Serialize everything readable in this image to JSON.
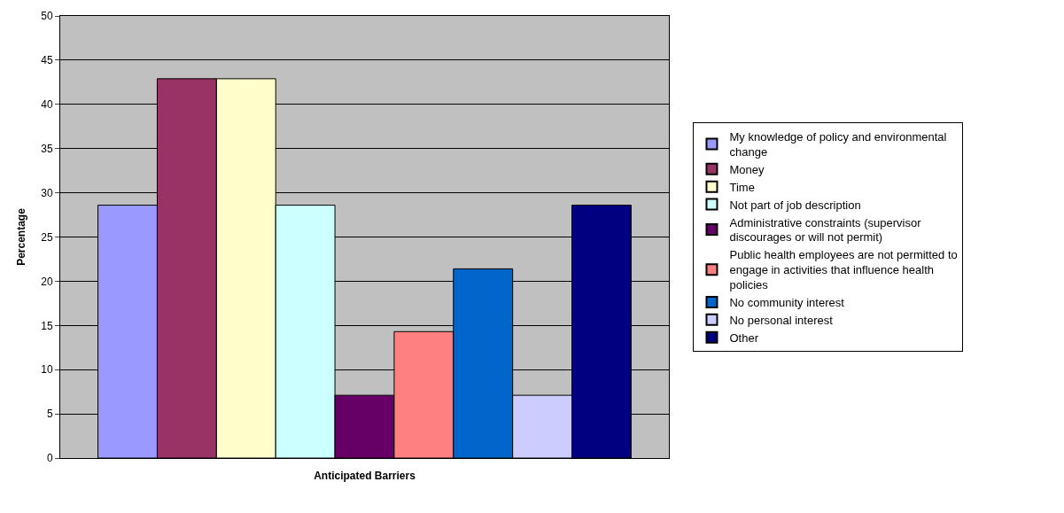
{
  "chart_data": {
    "type": "bar",
    "xlabel": "Anticipated Barriers",
    "ylabel": "Percentage",
    "categories": [
      null
    ],
    "series": [
      {
        "name": "My knowledge of policy and environmental change",
        "color": "#9999ff",
        "values": [
          28.6
        ]
      },
      {
        "name": "Money",
        "color": "#993366",
        "values": [
          42.9
        ]
      },
      {
        "name": "Time",
        "color": "#ffffcc",
        "values": [
          42.9
        ]
      },
      {
        "name": "Not part of job description",
        "color": "#ccffff",
        "values": [
          28.6
        ]
      },
      {
        "name": "Administrative constraints (supervisor discourages or will not permit)",
        "color": "#660066",
        "values": [
          7.1
        ]
      },
      {
        "name": "Public health employees are not permitted to engage in activities that influence health policies",
        "color": "#ff8080",
        "values": [
          14.3
        ]
      },
      {
        "name": "No community interest",
        "color": "#0066cc",
        "values": [
          21.4
        ]
      },
      {
        "name": "No personal interest",
        "color": "#ccccff",
        "values": [
          7.1
        ]
      },
      {
        "name": "Other",
        "color": "#000080",
        "values": [
          28.6
        ]
      }
    ],
    "ylim": [
      0,
      50
    ],
    "yticks": [
      0,
      5,
      10,
      15,
      20,
      25,
      30,
      35,
      40,
      45,
      50
    ],
    "grid": "y",
    "legend": "right",
    "tick_labels": "y"
  }
}
